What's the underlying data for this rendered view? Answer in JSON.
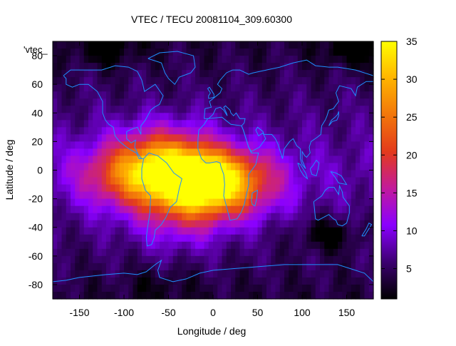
{
  "chart_data": {
    "type": "heatmap",
    "title": "VTEC / TECU 20081104_309.60300",
    "xlabel": "Longitude / deg",
    "ylabel": "Latitude / deg",
    "key_label": "'vtec_",
    "xlim": [
      -180,
      180
    ],
    "ylim": [
      -90,
      90
    ],
    "x_ticks": [
      -150,
      -100,
      -50,
      0,
      50,
      100,
      150
    ],
    "y_ticks": [
      80,
      60,
      40,
      20,
      0,
      -20,
      -40,
      -60,
      -80
    ],
    "colorbar": {
      "range": [
        1,
        35
      ],
      "ticks": [
        5,
        10,
        15,
        20,
        25,
        30,
        35
      ]
    },
    "palette": [
      "#000000",
      "#3c0070",
      "#8a00ff",
      "#c21a9c",
      "#e33a1c",
      "#f2760a",
      "#ffb400",
      "#ffff00"
    ],
    "coastline_color": "#1e90ff",
    "background": "#ffffff",
    "grid_resolution_deg": 5,
    "field_model": {
      "background_vtec": 8,
      "hotspots": [
        {
          "lon": -8,
          "lat": -10,
          "amplitude": 22
        },
        {
          "lon": -30,
          "lat": -8,
          "amplitude": 11
        },
        {
          "lon": -70,
          "lat": -2,
          "amplitude": 9
        },
        {
          "lon": -105,
          "lat": -5,
          "amplitude": 8
        },
        {
          "lon": -55,
          "lat": 12,
          "amplitude": 9
        },
        {
          "lon": 35,
          "lat": -8,
          "amplitude": 7
        },
        {
          "lon": -40,
          "lat": -38,
          "amplitude": 5
        }
      ],
      "depressions": [
        {
          "lon": 130,
          "lat": -45,
          "amplitude": 5
        },
        {
          "lon": 160,
          "lat": 85,
          "amplitude": 5
        },
        {
          "lon": -120,
          "lat": 85,
          "amplitude": 4
        },
        {
          "lon": -60,
          "lat": -80,
          "amplitude": 2
        }
      ]
    }
  }
}
